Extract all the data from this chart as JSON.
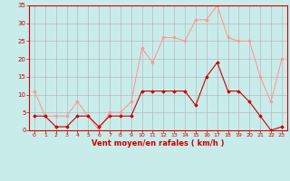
{
  "x": [
    0,
    1,
    2,
    3,
    4,
    5,
    6,
    7,
    8,
    9,
    10,
    11,
    12,
    13,
    14,
    15,
    16,
    17,
    18,
    19,
    20,
    21,
    22,
    23
  ],
  "wind_avg": [
    4,
    4,
    1,
    1,
    4,
    4,
    1,
    4,
    4,
    4,
    11,
    11,
    11,
    11,
    11,
    7,
    15,
    19,
    11,
    11,
    8,
    4,
    0,
    1
  ],
  "wind_gust": [
    11,
    4,
    4,
    4,
    8,
    4,
    0,
    5,
    5,
    8,
    23,
    19,
    26,
    26,
    25,
    31,
    31,
    35,
    26,
    25,
    25,
    15,
    8,
    20
  ],
  "bg_color": "#c8ecea",
  "grid_color": "#b0b0b0",
  "line_avg_color": "#cc0000",
  "line_gust_color": "#ff9999",
  "xlabel": "Vent moyen/en rafales ( km/h )",
  "xlabel_color": "#cc0000",
  "tick_color": "#cc0000",
  "ymin": 0,
  "ymax": 35,
  "yticks": [
    0,
    5,
    10,
    15,
    20,
    25,
    30,
    35
  ],
  "xticks": [
    0,
    1,
    2,
    3,
    4,
    5,
    6,
    7,
    8,
    9,
    10,
    11,
    12,
    13,
    14,
    15,
    16,
    17,
    18,
    19,
    20,
    21,
    22,
    23
  ]
}
